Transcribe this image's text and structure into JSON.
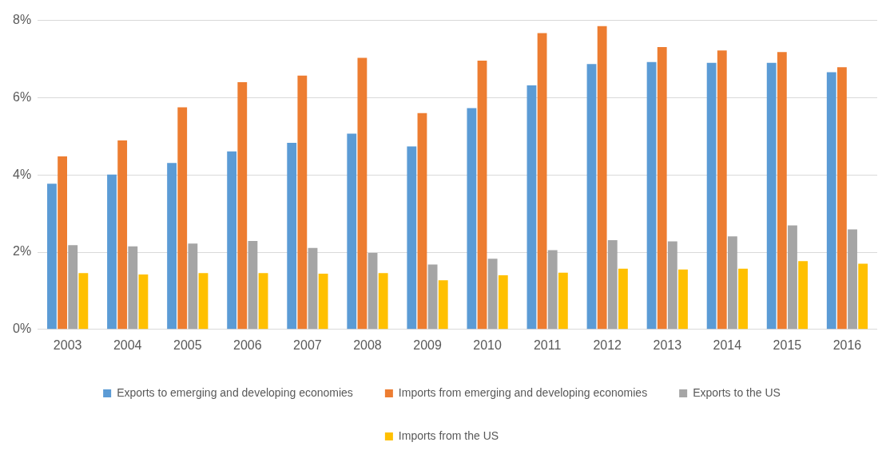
{
  "chart_data": {
    "type": "bar",
    "categories": [
      "2003",
      "2004",
      "2005",
      "2006",
      "2007",
      "2008",
      "2009",
      "2010",
      "2011",
      "2012",
      "2013",
      "2014",
      "2015",
      "2016"
    ],
    "series": [
      {
        "name": "Exports to emerging and developing economies",
        "color": "#5b9bd5",
        "values": [
          3.77,
          4.01,
          4.31,
          4.61,
          4.83,
          5.07,
          4.74,
          5.73,
          6.32,
          6.87,
          6.92,
          6.9,
          6.9,
          6.66
        ]
      },
      {
        "name": "Imports from emerging and developing economies",
        "color": "#ed7d31",
        "values": [
          4.48,
          4.89,
          5.75,
          6.4,
          6.57,
          7.03,
          5.6,
          6.96,
          7.67,
          7.85,
          7.31,
          7.22,
          7.18,
          6.79
        ]
      },
      {
        "name": "Exports to the US",
        "color": "#a5a5a5",
        "values": [
          2.18,
          2.15,
          2.22,
          2.29,
          2.11,
          1.98,
          1.68,
          1.83,
          2.05,
          2.31,
          2.28,
          2.41,
          2.69,
          2.59
        ]
      },
      {
        "name": "Imports from the US",
        "color": "#ffc000",
        "values": [
          1.46,
          1.42,
          1.46,
          1.46,
          1.44,
          1.46,
          1.27,
          1.4,
          1.47,
          1.57,
          1.55,
          1.57,
          1.77,
          1.7
        ]
      }
    ],
    "ylim": [
      0,
      8
    ],
    "yticks": [
      {
        "value": 0,
        "label": "0%"
      },
      {
        "value": 2,
        "label": "2%"
      },
      {
        "value": 4,
        "label": "4%"
      },
      {
        "value": 6,
        "label": "6%"
      },
      {
        "value": 8,
        "label": "8%"
      }
    ],
    "grid": "y",
    "legend": "bottom"
  }
}
